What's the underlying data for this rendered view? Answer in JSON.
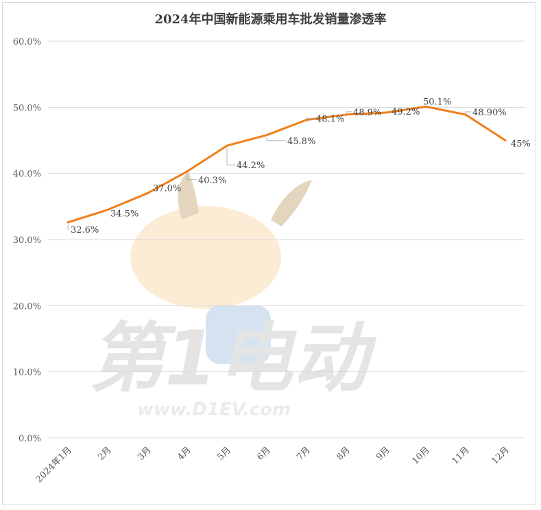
{
  "chart_data": {
    "type": "line",
    "title": "2024年中国新能源乘用车批发销量渗透率",
    "categories": [
      "2024年1月",
      "2月",
      "3月",
      "4月",
      "5月",
      "6月",
      "7月",
      "8月",
      "9月",
      "10月",
      "11月",
      "12月"
    ],
    "series": [
      {
        "values": [
          32.6,
          34.5,
          37.0,
          40.3,
          44.2,
          45.8,
          48.1,
          48.9,
          49.2,
          50.1,
          48.9,
          45.0
        ],
        "labels": [
          "32.6%",
          "34.5%",
          "37.0%",
          "40.3%",
          "44.2%",
          "45.8%",
          "48.1%",
          "48.9%",
          "49.2%",
          "50.1%",
          "48.90%",
          "45%"
        ],
        "color": "#f07f1a"
      }
    ],
    "ylim": [
      0,
      60
    ],
    "yticks": [
      "0.0%",
      "10.0%",
      "20.0%",
      "30.0%",
      "40.0%",
      "50.0%",
      "60.0%"
    ],
    "grid": true,
    "legend": "none"
  },
  "watermark": {
    "text": "第1电动",
    "url": "www.D1EV.com"
  },
  "colors": {
    "line": "#f07f1a",
    "grid": "#d9d9d9",
    "axis_text": "#595959"
  }
}
